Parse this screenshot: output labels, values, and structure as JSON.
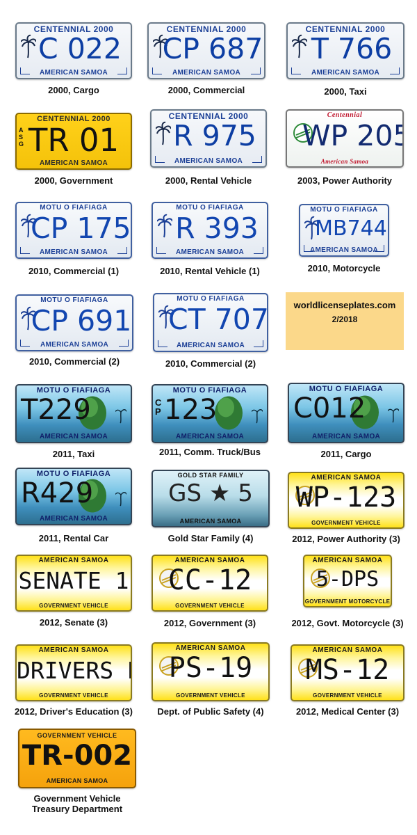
{
  "credit": {
    "site": "worldlicenseplates.com",
    "date": "2/2018"
  },
  "plates": [
    {
      "style": "centennial",
      "top": "CENTENNIAL 2000",
      "number": "C 022",
      "bottom": "AMERICAN SAMOA",
      "caption": "2000, Cargo"
    },
    {
      "style": "centennial",
      "top": "CENTENNIAL 2000",
      "number": "CP 687",
      "bottom": "AMERICAN SAMOA",
      "caption": "2000, Commercial"
    },
    {
      "style": "centennial",
      "top": "CENTENNIAL 2000",
      "number": "T 766",
      "bottom": "AMERICAN SAMOA",
      "caption": "2000, Taxi"
    },
    {
      "style": "gov2000",
      "top": "CENTENNIAL 2000",
      "number": "TR 01",
      "bottom": "AMERICAN SAMOA",
      "caption": "2000, Government",
      "side": "ASG"
    },
    {
      "style": "centennial",
      "top": "CENTENNIAL 2000",
      "number": "R 975",
      "bottom": "AMERICAN SAMOA",
      "caption": "2000, Rental Vehicle"
    },
    {
      "style": "power2003",
      "top": "Centennial",
      "number": "WP 205",
      "bottom": "American Samoa",
      "caption": "2003, Power Authority"
    },
    {
      "style": "fiafiaga",
      "top": "MOTU O FIAFIAGA",
      "number": "CP 175",
      "bottom": "AMERICAN SAMOA",
      "caption": "2010, Commercial (1)"
    },
    {
      "style": "fiafiaga",
      "top": "MOTU O FIAFIAGA",
      "number": "R 393",
      "bottom": "AMERICAN SAMOA",
      "caption": "2010, Rental Vehicle (1)"
    },
    {
      "style": "fiafiaga",
      "top": "MOTU O FIAFIAGA",
      "number": "MB744",
      "bottom": "AMERICAN SAMOA",
      "caption": "2010, Motorcycle"
    },
    {
      "style": "fiafiaga",
      "top": "MOTU O FIAFIAGA",
      "number": "CP 691",
      "bottom": "AMERICAN SAMOA",
      "caption": "2010, Commercial (2)"
    },
    {
      "style": "fiafiaga",
      "top": "MOTU O FIAFIAGA",
      "number": "CT 707",
      "bottom": "AMERICAN SAMOA",
      "caption": "2010, Commercial (2)"
    },
    {
      "style": "scenic",
      "top": "MOTU O FIAFIAGA",
      "number": "T229",
      "bottom": "AMERICAN SAMOA",
      "caption": "2011, Taxi"
    },
    {
      "style": "scenic",
      "top": "MOTU O FIAFIAGA",
      "number": "123",
      "bottom": "AMERICAN SAMOA",
      "caption": "2011, Comm. Truck/Bus",
      "side": "CP"
    },
    {
      "style": "scenic",
      "top": "MOTU O FIAFIAGA",
      "number": "C012",
      "bottom": "AMERICAN SAMOA",
      "caption": "2011, Cargo"
    },
    {
      "style": "scenic",
      "top": "MOTU O FIAFIAGA",
      "number": "R429",
      "bottom": "AMERICAN SAMOA",
      "caption": "2011, Rental Car"
    },
    {
      "style": "goldstar",
      "top": "GOLD STAR FAMILY",
      "number": "GS ★ 5",
      "bottom": "AMERICAN SAMOA",
      "caption": "Gold Star Family (4)"
    },
    {
      "style": "govveh",
      "top": "AMERICAN SAMOA",
      "number": "WP-123",
      "bottom": "GOVERNMENT VEHICLE",
      "caption": "2012, Power Authority (3)"
    },
    {
      "style": "govveh",
      "top": "AMERICAN SAMOA",
      "number": "SENATE 1",
      "bottom": "GOVERNMENT VEHICLE",
      "caption": "2012, Senate (3)"
    },
    {
      "style": "govveh",
      "top": "AMERICAN SAMOA",
      "number": "CC-12",
      "bottom": "GOVERNMENT VEHICLE",
      "caption": "2012, Government (3)"
    },
    {
      "style": "govveh",
      "top": "AMERICAN SAMOA",
      "number": "5-DPS",
      "bottom": "GOVERNMENT MOTORCYCLE",
      "caption": "2012, Govt. Motorcycle (3)"
    },
    {
      "style": "govveh",
      "top": "AMERICAN SAMOA",
      "number": "DRIVERS ED",
      "bottom": "GOVERNMENT VEHICLE",
      "caption": "2012, Driver's Education (3)"
    },
    {
      "style": "govveh",
      "top": "AMERICAN SAMOA",
      "number": "PS-19",
      "bottom": "GOVERNMENT VEHICLE",
      "caption": "Dept. of Public Safety (4)"
    },
    {
      "style": "govveh",
      "top": "AMERICAN SAMOA",
      "number": "MS-12",
      "bottom": "GOVERNMENT VEHICLE",
      "caption": "2012, Medical Center (3)"
    },
    {
      "style": "treasury",
      "top": "GOVERNMENT VEHICLE",
      "number": "TR-002",
      "bottom": "AMERICAN SAMOA",
      "caption": "Government Vehicle",
      "caption2": "Treasury Department"
    }
  ]
}
